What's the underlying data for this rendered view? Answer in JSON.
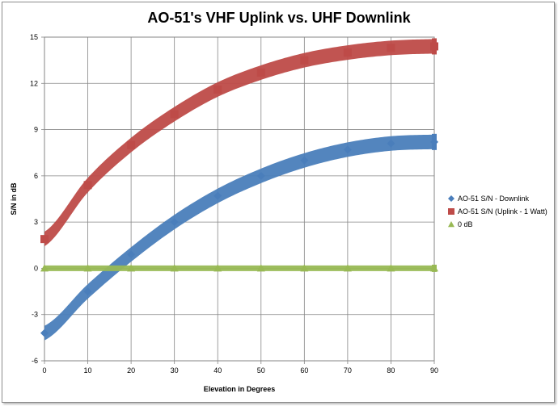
{
  "chart_data": {
    "type": "line",
    "title": "AO-51's VHF Uplink vs. UHF Downlink",
    "xlabel": "Elevation in Degrees",
    "ylabel": "S/N in dB",
    "xlim": [
      0,
      90
    ],
    "ylim": [
      -6,
      15
    ],
    "xticks": [
      0,
      10,
      20,
      30,
      40,
      50,
      60,
      70,
      80,
      90
    ],
    "yticks": [
      -6,
      -3,
      0,
      3,
      6,
      9,
      12,
      15
    ],
    "grid": true,
    "legend_position": "right",
    "x": [
      0,
      10,
      20,
      30,
      40,
      50,
      60,
      70,
      80,
      90
    ],
    "series": [
      {
        "name": "AO-51 S/N - Downlink",
        "color": "#4a7ebb",
        "marker": "diamond",
        "values": [
          -4.2,
          -1.5,
          0.9,
          3.0,
          4.7,
          6.0,
          7.0,
          7.7,
          8.1,
          8.2
        ]
      },
      {
        "name": "AO-51 S/N (Uplink - 1 Watt)",
        "color": "#be4b48",
        "marker": "square",
        "values": [
          1.9,
          5.4,
          8.0,
          10.0,
          11.6,
          12.7,
          13.5,
          14.0,
          14.3,
          14.4
        ]
      },
      {
        "name": "0 dB",
        "color": "#98b954",
        "marker": "triangle",
        "values": [
          0,
          0,
          0,
          0,
          0,
          0,
          0,
          0,
          0,
          0
        ]
      }
    ]
  }
}
